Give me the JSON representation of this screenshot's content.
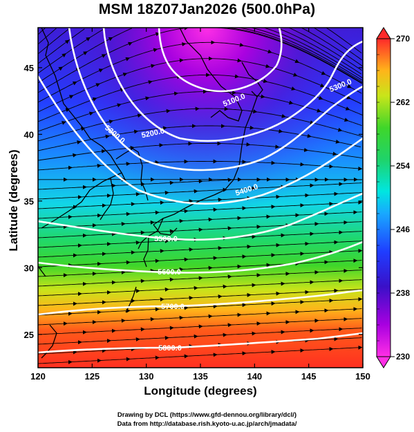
{
  "title": "MSM 18Z07Jan2026 (500.0hPa)",
  "axes": {
    "x_label": "Longitude (degrees)",
    "y_label": "Latitude  (degrees)",
    "x_range": [
      120,
      150
    ],
    "y_range": [
      22.5,
      48
    ],
    "x_ticks": [
      "120",
      "125",
      "130",
      "135",
      "140",
      "145",
      "150"
    ],
    "y_ticks": [
      "25",
      "30",
      "35",
      "40",
      "45"
    ]
  },
  "colorbar": {
    "range": [
      230,
      270
    ],
    "tick_labels": [
      "270",
      "262",
      "254",
      "246",
      "238",
      "230"
    ]
  },
  "contours": [
    {
      "label": "5100.0"
    },
    {
      "label": "5200.0"
    },
    {
      "label": "5300.0"
    },
    {
      "label": "5300.0"
    },
    {
      "label": "5400.0"
    },
    {
      "label": "5500.0"
    },
    {
      "label": "5600.0"
    },
    {
      "label": "5700.0"
    },
    {
      "label": "5800.0"
    }
  ],
  "credits": {
    "line1": "Drawing by DCL (https://www.gfd-dennou.org/library/dcl/)",
    "line2": "Data from http://database.rish.kyoto-u.ac.jp/arch/jmadata/"
  }
}
